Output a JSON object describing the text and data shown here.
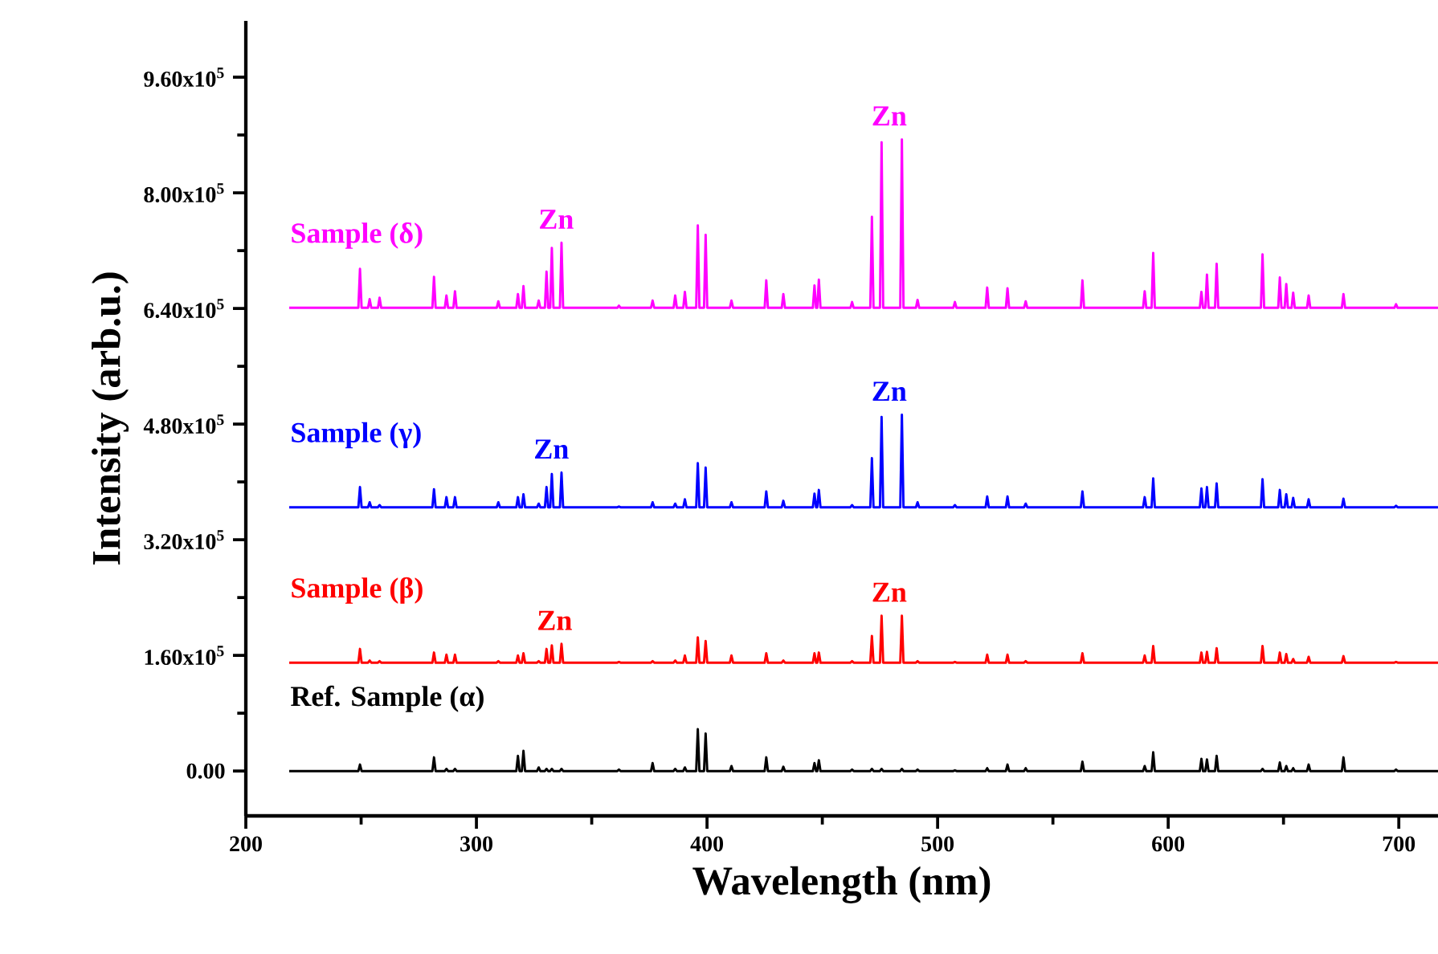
{
  "chart_data": {
    "type": "line",
    "xlabel": "Wavelength (nm)",
    "ylabel": "Intensity (arb.u.)",
    "xlim": [
      200,
      717
    ],
    "ylim": [
      -62000,
      1038000
    ],
    "xticks": [
      200,
      300,
      400,
      500,
      600,
      700
    ],
    "yticks": [
      {
        "value": 0,
        "label": "0.00"
      },
      {
        "value": 160000,
        "label": "1.60x10$^{5}$"
      },
      {
        "value": 320000,
        "label": "3.20x10$^{5}$"
      },
      {
        "value": 480000,
        "label": "4.80x10$^{5}$"
      },
      {
        "value": 640000,
        "label": "6.40x10$^{5}$"
      },
      {
        "value": 800000,
        "label": "8.00x10$^{5}$"
      },
      {
        "value": 960000,
        "label": "9.60x10$^{5}$"
      }
    ],
    "x": [
      218.8,
      248.8,
      249.5,
      250.2,
      253.0,
      253.7,
      254.4,
      257.3,
      258,
      258.7,
      280.9,
      281.6,
      282.3,
      286.3,
      287,
      287.7,
      290.0,
      290.7,
      291.4,
      308.8,
      309.5,
      310.2,
      317.3,
      318,
      318.7,
      319.7,
      320.4,
      321.1,
      326.3,
      327,
      327.7,
      329.7,
      330.4,
      331.1,
      332.0,
      332.7,
      333.4,
      336.2,
      336.9,
      337.6,
      361.1,
      361.8,
      362.5,
      375.7,
      376.4,
      377.1,
      385.5,
      386.2,
      386.9,
      389.7,
      390.4,
      391.1,
      395.3,
      396,
      396.7,
      398.7,
      399.4,
      400.1,
      409.9,
      410.6,
      411.3,
      425.0,
      425.7,
      426.4,
      432.4,
      433.1,
      433.8,
      445.9,
      446.6,
      447.3,
      447.8,
      448.5,
      449.2,
      462.2,
      462.9,
      463.6,
      470.8,
      471.5,
      472.2,
      475.0,
      475.7,
      476.4,
      483.8,
      484.5,
      485.2,
      490.6,
      491.3,
      492.0,
      506.8,
      507.5,
      508.2,
      520.8,
      521.5,
      522.2,
      529.6,
      530.3,
      531.0,
      537.5,
      538.2,
      538.9,
      562.1,
      562.8,
      563.5,
      589.1,
      589.8,
      590.5,
      592.8,
      593.5,
      594.2,
      613.7,
      614.4,
      615.1,
      616.1,
      616.8,
      617.5,
      620.3,
      621,
      621.7,
      640.2,
      640.9,
      641.6,
      647.7,
      648.4,
      649.1,
      650.5,
      651.2,
      651.9,
      653.5,
      654.2,
      654.9,
      660.2,
      660.9,
      661.6,
      675.3,
      676,
      676.7,
      698.1,
      698.8,
      699.5,
      717
    ],
    "series": [
      {
        "name": "Ref. Sample (α)",
        "color": "#000000",
        "values": [
          0,
          0,
          9000,
          0,
          0,
          0,
          0,
          0,
          0,
          0,
          0,
          19000,
          0,
          0,
          3000,
          0,
          0,
          3000,
          0,
          0,
          0,
          0,
          0,
          21000,
          0,
          0,
          28000,
          0,
          0,
          5000,
          0,
          0,
          3000,
          0,
          0,
          3000,
          0,
          0,
          3000,
          0,
          0,
          2000,
          0,
          0,
          11000,
          0,
          0,
          3000,
          0,
          0,
          5000,
          0,
          0,
          58000,
          0,
          0,
          52000,
          0,
          0,
          7000,
          0,
          0,
          19000,
          0,
          0,
          6000,
          0,
          0,
          11000,
          0,
          0,
          15000,
          0,
          0,
          2000,
          0,
          0,
          3000,
          0,
          0,
          3000,
          0,
          0,
          3000,
          0,
          0,
          2000,
          0,
          0,
          1000,
          0,
          0,
          4000,
          0,
          0,
          9000,
          0,
          0,
          4000,
          0,
          0,
          13000,
          0,
          0,
          7000,
          0,
          0,
          26000,
          0,
          0,
          17000,
          0,
          0,
          16000,
          0,
          0,
          21000,
          0,
          0,
          3000,
          0,
          0,
          12000,
          0,
          0,
          7000,
          0,
          0,
          4000,
          0,
          0,
          9000,
          0,
          0,
          19000,
          0,
          0,
          2000,
          0,
          0
        ]
      },
      {
        "name": "Sample (β)",
        "color": "#ff0000",
        "values": [
          150000,
          150000,
          169000,
          150000,
          150000,
          153000,
          150000,
          150000,
          152000,
          150000,
          150000,
          164000,
          150000,
          150000,
          161000,
          150000,
          150000,
          161000,
          150000,
          150000,
          152000,
          150000,
          150000,
          160000,
          150000,
          150000,
          163000,
          150000,
          150000,
          152000,
          150000,
          150000,
          169000,
          150000,
          150000,
          174000,
          150000,
          150000,
          176000,
          150000,
          150000,
          151000,
          150000,
          150000,
          152000,
          150000,
          150000,
          153000,
          150000,
          150000,
          160000,
          150000,
          150000,
          185000,
          150000,
          150000,
          180000,
          150000,
          150000,
          160000,
          150000,
          150000,
          163000,
          150000,
          150000,
          153000,
          150000,
          150000,
          163000,
          150000,
          150000,
          164000,
          150000,
          150000,
          152000,
          150000,
          150000,
          187000,
          150000,
          150000,
          215000,
          150000,
          150000,
          215000,
          150000,
          150000,
          152000,
          150000,
          150000,
          151000,
          150000,
          150000,
          161000,
          150000,
          150000,
          161000,
          150000,
          150000,
          152000,
          150000,
          150000,
          163000,
          150000,
          150000,
          160000,
          150000,
          150000,
          173000,
          150000,
          150000,
          164000,
          150000,
          150000,
          165000,
          150000,
          150000,
          170000,
          150000,
          150000,
          173000,
          150000,
          150000,
          164000,
          150000,
          150000,
          162000,
          150000,
          150000,
          155000,
          150000,
          150000,
          158000,
          150000,
          150000,
          159000,
          150000,
          150000,
          151000,
          150000,
          150000
        ]
      },
      {
        "name": "Sample (γ)",
        "color": "#0000ff",
        "values": [
          365000,
          365000,
          393000,
          365000,
          365000,
          372000,
          365000,
          365000,
          368000,
          365000,
          365000,
          390000,
          365000,
          365000,
          379000,
          365000,
          365000,
          379000,
          365000,
          365000,
          372000,
          365000,
          365000,
          379000,
          365000,
          365000,
          383000,
          365000,
          365000,
          370000,
          365000,
          365000,
          393000,
          365000,
          365000,
          411000,
          365000,
          365000,
          413000,
          365000,
          365000,
          366000,
          365000,
          365000,
          372000,
          365000,
          365000,
          370000,
          365000,
          365000,
          376000,
          365000,
          365000,
          426000,
          365000,
          365000,
          420000,
          365000,
          365000,
          372000,
          365000,
          365000,
          387000,
          365000,
          365000,
          374000,
          365000,
          365000,
          384000,
          365000,
          365000,
          389000,
          365000,
          365000,
          368000,
          365000,
          365000,
          433000,
          365000,
          365000,
          490000,
          365000,
          365000,
          493000,
          365000,
          365000,
          372000,
          365000,
          365000,
          368000,
          365000,
          365000,
          380000,
          365000,
          365000,
          380000,
          365000,
          365000,
          370000,
          365000,
          365000,
          387000,
          365000,
          365000,
          379000,
          365000,
          365000,
          405000,
          365000,
          365000,
          391000,
          365000,
          365000,
          393000,
          365000,
          365000,
          398000,
          365000,
          365000,
          404000,
          365000,
          365000,
          389000,
          365000,
          365000,
          383000,
          365000,
          365000,
          378000,
          365000,
          365000,
          376000,
          365000,
          365000,
          377000,
          365000,
          365000,
          367000,
          365000,
          365000
        ]
      },
      {
        "name": "Sample (δ)",
        "color": "#ff00ff",
        "values": [
          641000,
          641000,
          695000,
          641000,
          641000,
          653000,
          641000,
          641000,
          655000,
          641000,
          641000,
          684000,
          641000,
          641000,
          658000,
          641000,
          641000,
          664000,
          641000,
          641000,
          650000,
          641000,
          641000,
          660000,
          641000,
          641000,
          671000,
          641000,
          641000,
          651000,
          641000,
          641000,
          691000,
          641000,
          641000,
          724000,
          641000,
          641000,
          731000,
          641000,
          641000,
          644000,
          641000,
          641000,
          651000,
          641000,
          641000,
          658000,
          641000,
          641000,
          663000,
          641000,
          641000,
          755000,
          641000,
          641000,
          742000,
          641000,
          641000,
          651000,
          641000,
          641000,
          679000,
          641000,
          641000,
          660000,
          641000,
          641000,
          672000,
          641000,
          641000,
          680000,
          641000,
          641000,
          649000,
          641000,
          641000,
          767000,
          641000,
          641000,
          870000,
          641000,
          641000,
          874000,
          641000,
          641000,
          652000,
          641000,
          641000,
          649000,
          641000,
          641000,
          669000,
          641000,
          641000,
          668000,
          641000,
          641000,
          650000,
          641000,
          641000,
          679000,
          641000,
          641000,
          664000,
          641000,
          641000,
          717000,
          641000,
          641000,
          663000,
          641000,
          641000,
          687000,
          641000,
          641000,
          702000,
          641000,
          641000,
          715000,
          641000,
          641000,
          683000,
          641000,
          641000,
          674000,
          641000,
          641000,
          662000,
          641000,
          641000,
          658000,
          641000,
          641000,
          660000,
          641000,
          641000,
          646000,
          641000,
          641000
        ]
      }
    ],
    "annotations": [
      {
        "text": "Zn",
        "x": 333.9,
        "y": 176000
      },
      {
        "text": "Zn",
        "x": 479,
        "y": 215000
      },
      {
        "text": "Zn",
        "x": 332.5,
        "y": 413000
      },
      {
        "text": "Zn",
        "x": 479,
        "y": 493000
      },
      {
        "text": "Zn",
        "x": 334.6,
        "y": 731000
      },
      {
        "text": "Zn",
        "x": 479,
        "y": 874000
      }
    ]
  }
}
